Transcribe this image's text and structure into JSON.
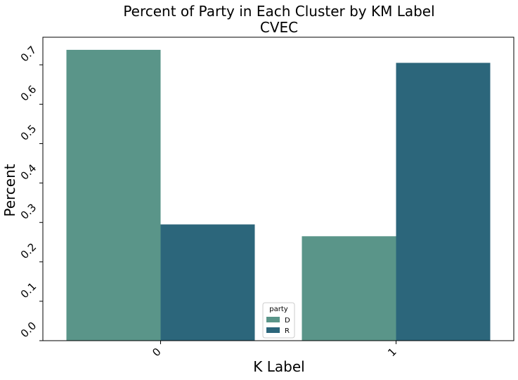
{
  "chart_data": {
    "type": "bar",
    "title": "Percent of Party in Each Cluster by KM Label",
    "subtitle": "CVEC",
    "xlabel": "K Label",
    "ylabel": "Percent",
    "categories": [
      "0",
      "1"
    ],
    "series": [
      {
        "name": "D",
        "color": "#5a9589",
        "values": [
          0.738,
          0.265
        ]
      },
      {
        "name": "R",
        "color": "#2c667b",
        "values": [
          0.295,
          0.705
        ]
      }
    ],
    "ylim": [
      0,
      0.77
    ],
    "yticks": [
      {
        "value": 0.0,
        "label": "0.0"
      },
      {
        "value": 0.1,
        "label": "0.1"
      },
      {
        "value": 0.2,
        "label": "0.2"
      },
      {
        "value": 0.3,
        "label": "0.3"
      },
      {
        "value": 0.4,
        "label": "0.4"
      },
      {
        "value": 0.5,
        "label": "0.5"
      },
      {
        "value": 0.6,
        "label": "0.6"
      },
      {
        "value": 0.7,
        "label": "0.7"
      }
    ],
    "legend": {
      "title": "party",
      "placement": "bottom-center"
    },
    "grid": false
  }
}
